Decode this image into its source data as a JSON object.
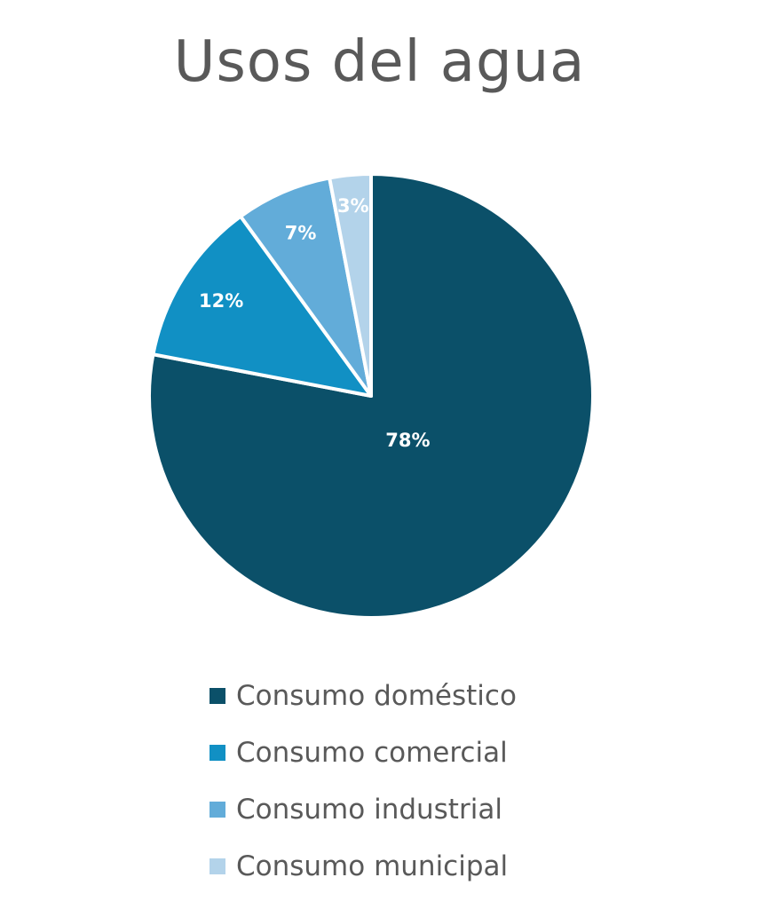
{
  "chart_data": {
    "type": "pie",
    "title": "Usos del agua",
    "categories": [
      "Consumo doméstico",
      "Consumo comercial",
      "Consumo industrial",
      "Consumo municipal"
    ],
    "values": [
      78,
      12,
      7,
      3
    ],
    "data_labels": [
      "78%",
      "12%",
      "7%",
      "3%"
    ],
    "colors": [
      "#0b5069",
      "#1190c4",
      "#62acd9",
      "#b3d3ea"
    ],
    "legend_position": "bottom"
  }
}
